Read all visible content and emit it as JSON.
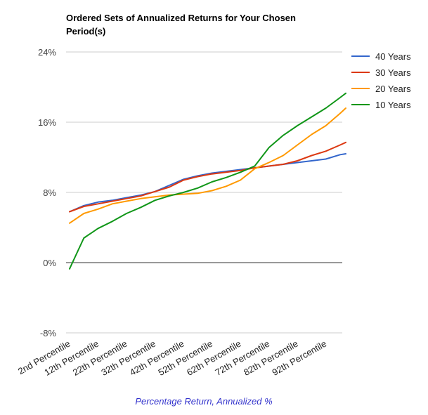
{
  "chart_data": {
    "type": "line",
    "title_lines": [
      "Ordered Sets of Annualized Returns for Your Chosen",
      "Period(s)"
    ],
    "xlabel": "Percentage Return, Annualized %",
    "ylim": [
      -8,
      24
    ],
    "y_ticks": [
      -8,
      0,
      8,
      16,
      24
    ],
    "y_tick_labels": [
      "-8%",
      "0%",
      "8%",
      "16%",
      "24%"
    ],
    "x": [
      2,
      7,
      12,
      17,
      22,
      27,
      32,
      37,
      42,
      47,
      52,
      57,
      62,
      67,
      72,
      77,
      82,
      87,
      92,
      97,
      99
    ],
    "x_tick_values": [
      2,
      12,
      22,
      32,
      42,
      52,
      62,
      72,
      82,
      92
    ],
    "x_tick_labels": [
      "2nd Percentile",
      "12th Percentile",
      "22th Percentile",
      "32th Percentile",
      "42th Percentile",
      "52th Percentile",
      "62th Percentile",
      "72th Percentile",
      "82th Percentile",
      "92th Percentile"
    ],
    "grid": true,
    "legend_position": "right",
    "series": [
      {
        "name": "40 Years",
        "color": "#3366cc",
        "values": [
          5.8,
          6.5,
          6.9,
          7.1,
          7.4,
          7.7,
          8.1,
          8.8,
          9.5,
          9.9,
          10.2,
          10.4,
          10.6,
          10.8,
          11.0,
          11.2,
          11.4,
          11.6,
          11.8,
          12.3,
          12.4
        ]
      },
      {
        "name": "30 Years",
        "color": "#dc3912",
        "values": [
          5.8,
          6.4,
          6.7,
          7.0,
          7.3,
          7.6,
          8.1,
          8.6,
          9.4,
          9.8,
          10.1,
          10.3,
          10.5,
          10.8,
          11.0,
          11.2,
          11.6,
          12.2,
          12.7,
          13.4,
          13.7
        ]
      },
      {
        "name": "20 Years",
        "color": "#ff9900",
        "values": [
          4.5,
          5.6,
          6.1,
          6.7,
          7.0,
          7.3,
          7.5,
          7.7,
          7.8,
          7.9,
          8.2,
          8.7,
          9.4,
          10.7,
          11.4,
          12.2,
          13.4,
          14.6,
          15.6,
          17.0,
          17.6
        ]
      },
      {
        "name": "10 Years",
        "color": "#109618",
        "values": [
          -0.7,
          2.8,
          3.9,
          4.7,
          5.6,
          6.3,
          7.1,
          7.6,
          8.0,
          8.5,
          9.2,
          9.7,
          10.3,
          11.0,
          13.1,
          14.5,
          15.6,
          16.6,
          17.6,
          18.8,
          19.3
        ]
      }
    ]
  }
}
